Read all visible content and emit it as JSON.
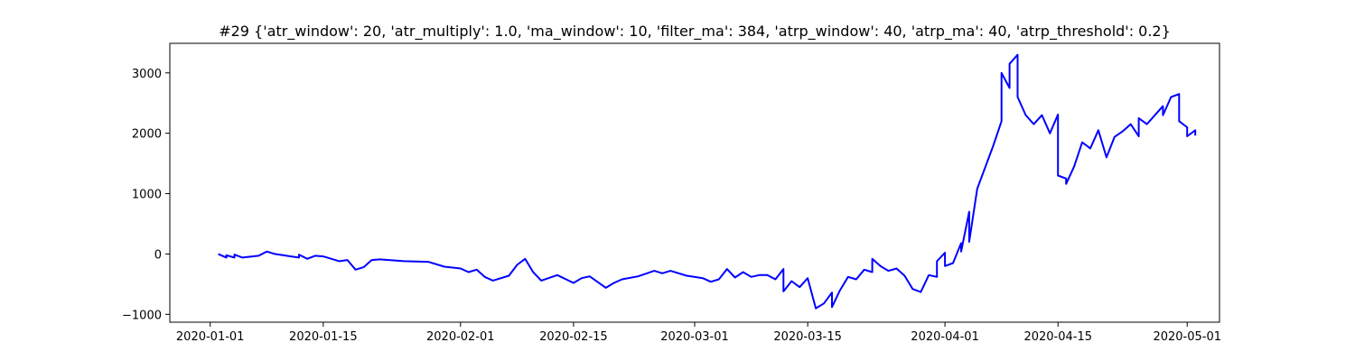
{
  "chart_data": {
    "type": "line",
    "title": "#29 {'atr_window': 20, 'atr_multiply': 1.0, 'ma_window': 10, 'filter_ma': 384, 'atrp_window': 40, 'atrp_ma': 40, 'atrp_threshold': 0.2}",
    "xlabel": "",
    "ylabel": "",
    "xlim": [
      "2019-12-27",
      "2020-05-05"
    ],
    "ylim": [
      -1130,
      3490
    ],
    "x_ticks": [
      "2020-01-01",
      "2020-01-15",
      "2020-02-01",
      "2020-02-15",
      "2020-03-01",
      "2020-03-15",
      "2020-04-01",
      "2020-04-15",
      "2020-05-01"
    ],
    "y_ticks": [
      -1000,
      0,
      1000,
      2000,
      3000
    ],
    "grid": false,
    "series": [
      {
        "color": "#0000ff",
        "points": [
          [
            "2020-01-02",
            0
          ],
          [
            "2020-01-03",
            -60
          ],
          [
            "2020-01-03",
            -20
          ],
          [
            "2020-01-04",
            -60
          ],
          [
            "2020-01-04",
            -10
          ],
          [
            "2020-01-05",
            -60
          ],
          [
            "2020-01-07",
            -30
          ],
          [
            "2020-01-08",
            40
          ],
          [
            "2020-01-09",
            0
          ],
          [
            "2020-01-10",
            -20
          ],
          [
            "2020-01-11",
            -40
          ],
          [
            "2020-01-12",
            -60
          ],
          [
            "2020-01-12",
            -10
          ],
          [
            "2020-01-13",
            -80
          ],
          [
            "2020-01-14",
            -30
          ],
          [
            "2020-01-15",
            -40
          ],
          [
            "2020-01-17",
            -120
          ],
          [
            "2020-01-18",
            -100
          ],
          [
            "2020-01-19",
            -260
          ],
          [
            "2020-01-20",
            -220
          ],
          [
            "2020-01-21",
            -100
          ],
          [
            "2020-01-22",
            -90
          ],
          [
            "2020-01-25",
            -120
          ],
          [
            "2020-01-28",
            -130
          ],
          [
            "2020-01-30",
            -210
          ],
          [
            "2020-02-01",
            -240
          ],
          [
            "2020-02-02",
            -300
          ],
          [
            "2020-02-03",
            -260
          ],
          [
            "2020-02-04",
            -380
          ],
          [
            "2020-02-05",
            -440
          ],
          [
            "2020-02-07",
            -360
          ],
          [
            "2020-02-08",
            -180
          ],
          [
            "2020-02-09",
            -80
          ],
          [
            "2020-02-10",
            -300
          ],
          [
            "2020-02-11",
            -440
          ],
          [
            "2020-02-13",
            -350
          ],
          [
            "2020-02-15",
            -480
          ],
          [
            "2020-02-16",
            -400
          ],
          [
            "2020-02-17",
            -370
          ],
          [
            "2020-02-19",
            -560
          ],
          [
            "2020-02-20",
            -480
          ],
          [
            "2020-02-21",
            -420
          ],
          [
            "2020-02-23",
            -370
          ],
          [
            "2020-02-25",
            -280
          ],
          [
            "2020-02-26",
            -320
          ],
          [
            "2020-02-27",
            -280
          ],
          [
            "2020-02-29",
            -360
          ],
          [
            "2020-03-02",
            -400
          ],
          [
            "2020-03-03",
            -460
          ],
          [
            "2020-03-04",
            -420
          ],
          [
            "2020-03-05",
            -250
          ],
          [
            "2020-03-06",
            -390
          ],
          [
            "2020-03-07",
            -300
          ],
          [
            "2020-03-08",
            -380
          ],
          [
            "2020-03-09",
            -350
          ],
          [
            "2020-03-10",
            -350
          ],
          [
            "2020-03-11",
            -420
          ],
          [
            "2020-03-12",
            -250
          ],
          [
            "2020-03-12",
            -620
          ],
          [
            "2020-03-13",
            -450
          ],
          [
            "2020-03-14",
            -550
          ],
          [
            "2020-03-15",
            -400
          ],
          [
            "2020-03-16",
            -900
          ],
          [
            "2020-03-17",
            -820
          ],
          [
            "2020-03-18",
            -640
          ],
          [
            "2020-03-18",
            -880
          ],
          [
            "2020-03-19",
            -600
          ],
          [
            "2020-03-20",
            -380
          ],
          [
            "2020-03-21",
            -420
          ],
          [
            "2020-03-22",
            -260
          ],
          [
            "2020-03-23",
            -300
          ],
          [
            "2020-03-23",
            -80
          ],
          [
            "2020-03-24",
            -200
          ],
          [
            "2020-03-25",
            -280
          ],
          [
            "2020-03-26",
            -240
          ],
          [
            "2020-03-27",
            -360
          ],
          [
            "2020-03-28",
            -580
          ],
          [
            "2020-03-29",
            -630
          ],
          [
            "2020-03-30",
            -350
          ],
          [
            "2020-03-31",
            -380
          ],
          [
            "2020-03-31",
            -120
          ],
          [
            "2020-04-01",
            20
          ],
          [
            "2020-04-01",
            -200
          ],
          [
            "2020-04-02",
            -150
          ],
          [
            "2020-04-03",
            180
          ],
          [
            "2020-04-03",
            40
          ],
          [
            "2020-04-04",
            700
          ],
          [
            "2020-04-04",
            200
          ],
          [
            "2020-04-05",
            1080
          ],
          [
            "2020-04-07",
            1800
          ],
          [
            "2020-04-08",
            2200
          ],
          [
            "2020-04-08",
            3000
          ],
          [
            "2020-04-09",
            2750
          ],
          [
            "2020-04-09",
            3150
          ],
          [
            "2020-04-10",
            3300
          ],
          [
            "2020-04-10",
            2600
          ],
          [
            "2020-04-11",
            2300
          ],
          [
            "2020-04-12",
            2150
          ],
          [
            "2020-04-13",
            2300
          ],
          [
            "2020-04-14",
            2000
          ],
          [
            "2020-04-15",
            2310
          ],
          [
            "2020-04-15",
            1300
          ],
          [
            "2020-04-16",
            1250
          ],
          [
            "2020-04-16",
            1160
          ],
          [
            "2020-04-17",
            1450
          ],
          [
            "2020-04-18",
            1850
          ],
          [
            "2020-04-19",
            1750
          ],
          [
            "2020-04-20",
            2050
          ],
          [
            "2020-04-21",
            1600
          ],
          [
            "2020-04-22",
            1940
          ],
          [
            "2020-04-23",
            2030
          ],
          [
            "2020-04-24",
            2150
          ],
          [
            "2020-04-25",
            1950
          ],
          [
            "2020-04-25",
            2250
          ],
          [
            "2020-04-26",
            2150
          ],
          [
            "2020-04-27",
            2300
          ],
          [
            "2020-04-28",
            2450
          ],
          [
            "2020-04-28",
            2300
          ],
          [
            "2020-04-29",
            2600
          ],
          [
            "2020-04-30",
            2650
          ],
          [
            "2020-04-30",
            2200
          ],
          [
            "2020-05-01",
            2100
          ],
          [
            "2020-05-01",
            1950
          ],
          [
            "2020-05-02",
            2050
          ],
          [
            "2020-05-02",
            1960
          ]
        ]
      }
    ]
  }
}
